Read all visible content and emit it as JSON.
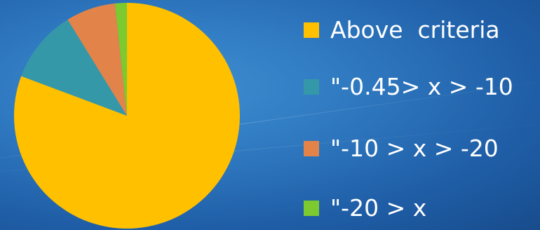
{
  "chart_data": {
    "type": "pie",
    "title": "",
    "start_angle_deg": 0,
    "direction": "clockwise",
    "slices": [
      {
        "label": "Above  criteria",
        "value": 80.7,
        "color": "#FFC000"
      },
      {
        "label": "\"-0.45> x > -10",
        "value": 10.5,
        "color": "#3598A8"
      },
      {
        "label": "\"-10 > x > -20",
        "value": 7.1,
        "color": "#E2844A"
      },
      {
        "label": "\"-20 > x",
        "value": 1.7,
        "color": "#7CC930"
      }
    ],
    "legend_position": "right"
  }
}
